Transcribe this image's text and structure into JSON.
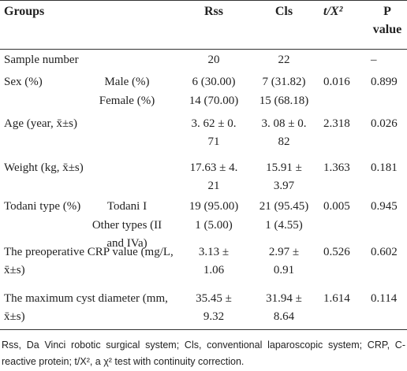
{
  "header": {
    "groups": "Groups",
    "rss": "Rss",
    "cls": "Cls",
    "stat": "t/X²",
    "p": "P value"
  },
  "rows": [
    {
      "label": "Sample number",
      "rss": "20",
      "cls": "22",
      "p": "–"
    },
    {
      "label": "Sex (%)",
      "sub": "Male (%)",
      "rss": "6 (30.00)",
      "cls": "7 (31.82)",
      "t": "0.016",
      "p": "0.899"
    },
    {
      "sub": "Female (%)",
      "rss": "14 (70.00)",
      "cls": "15 (68.18)"
    },
    {
      "label": "Age (year, x̄±s)",
      "rss": "3. 62 ± 0. 71",
      "cls": "3. 08 ± 0. 82",
      "t": "2.318",
      "p": "0.026"
    },
    {
      "label": "Weight (kg, x̄±s)",
      "rss": "17.63 ± 4. 21",
      "cls": "15.91 ± 3.97",
      "t": "1.363",
      "p": "0.181"
    },
    {
      "label": "Todani type (%)",
      "sub": "Todani I",
      "rss": "19 (95.00)",
      "cls": "21 (95.45)",
      "t": "0.005",
      "p": "0.945"
    },
    {
      "sub": "Other types (II and IVa)",
      "rss": "1 (5.00)",
      "cls": "1 (4.55)"
    },
    {
      "label": "The preoperative CRP value (mg/L, x̄±s)",
      "rss": "3.13 ± 1.06",
      "cls": "2.97 ± 0.91",
      "t": "0.526",
      "p": "0.602"
    },
    {
      "label": "The maximum cyst diameter (mm, x̄±s)",
      "rss": "35.45 ± 9.32",
      "cls": "31.94 ± 8.64",
      "t": "1.614",
      "p": "0.114"
    }
  ],
  "footnote": "Rss, Da Vinci robotic surgical system; Cls, conventional laparoscopic system; CRP, C-reactive protein; t/X², a χ² test with continuity correction."
}
